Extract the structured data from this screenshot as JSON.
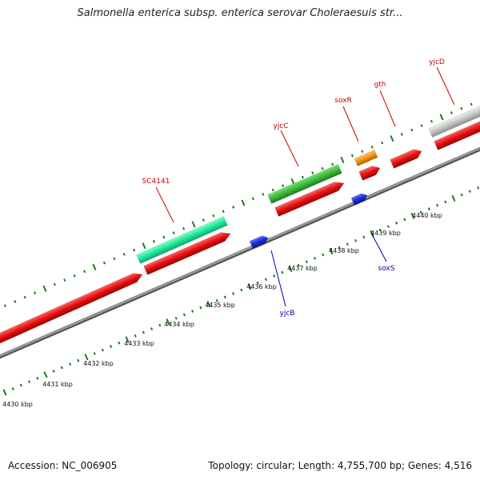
{
  "title": "Salmonella enterica subsp. enterica serovar Choleraesuis str...",
  "footer": {
    "accession": "Accession: NC_006905",
    "summary": "Topology: circular; Length: 4,755,700 bp; Genes: 4,516"
  },
  "scale_labels": [
    "4430 kbp",
    "4431 kbp",
    "4432 kbp",
    "4433 kbp",
    "4434 kbp",
    "4435 kbp",
    "4436 kbp",
    "4437 kbp",
    "4438 kbp",
    "4439 kbp",
    "4440 kbp"
  ],
  "gene_labels": [
    {
      "name": "SC4141",
      "color": "#cc0000"
    },
    {
      "name": "yjcC",
      "color": "#cc0000"
    },
    {
      "name": "soxR",
      "color": "#cc0000"
    },
    {
      "name": "gth",
      "color": "#cc0000"
    },
    {
      "name": "yjcD",
      "color": "#cc0000"
    },
    {
      "name": "yjcB",
      "color": "#0000bb"
    },
    {
      "name": "soxS",
      "color": "#0000bb"
    }
  ],
  "colors": {
    "cds": "#e51010",
    "gene_teal": "#1ee89a",
    "gene_green": "#3ab838",
    "gene_orange": "#f29410",
    "gene_gray": "#c4c4c4",
    "reverse": "#1a2fd6",
    "backbone": "#8a8a8a",
    "ticks": "#1d7a1d"
  }
}
